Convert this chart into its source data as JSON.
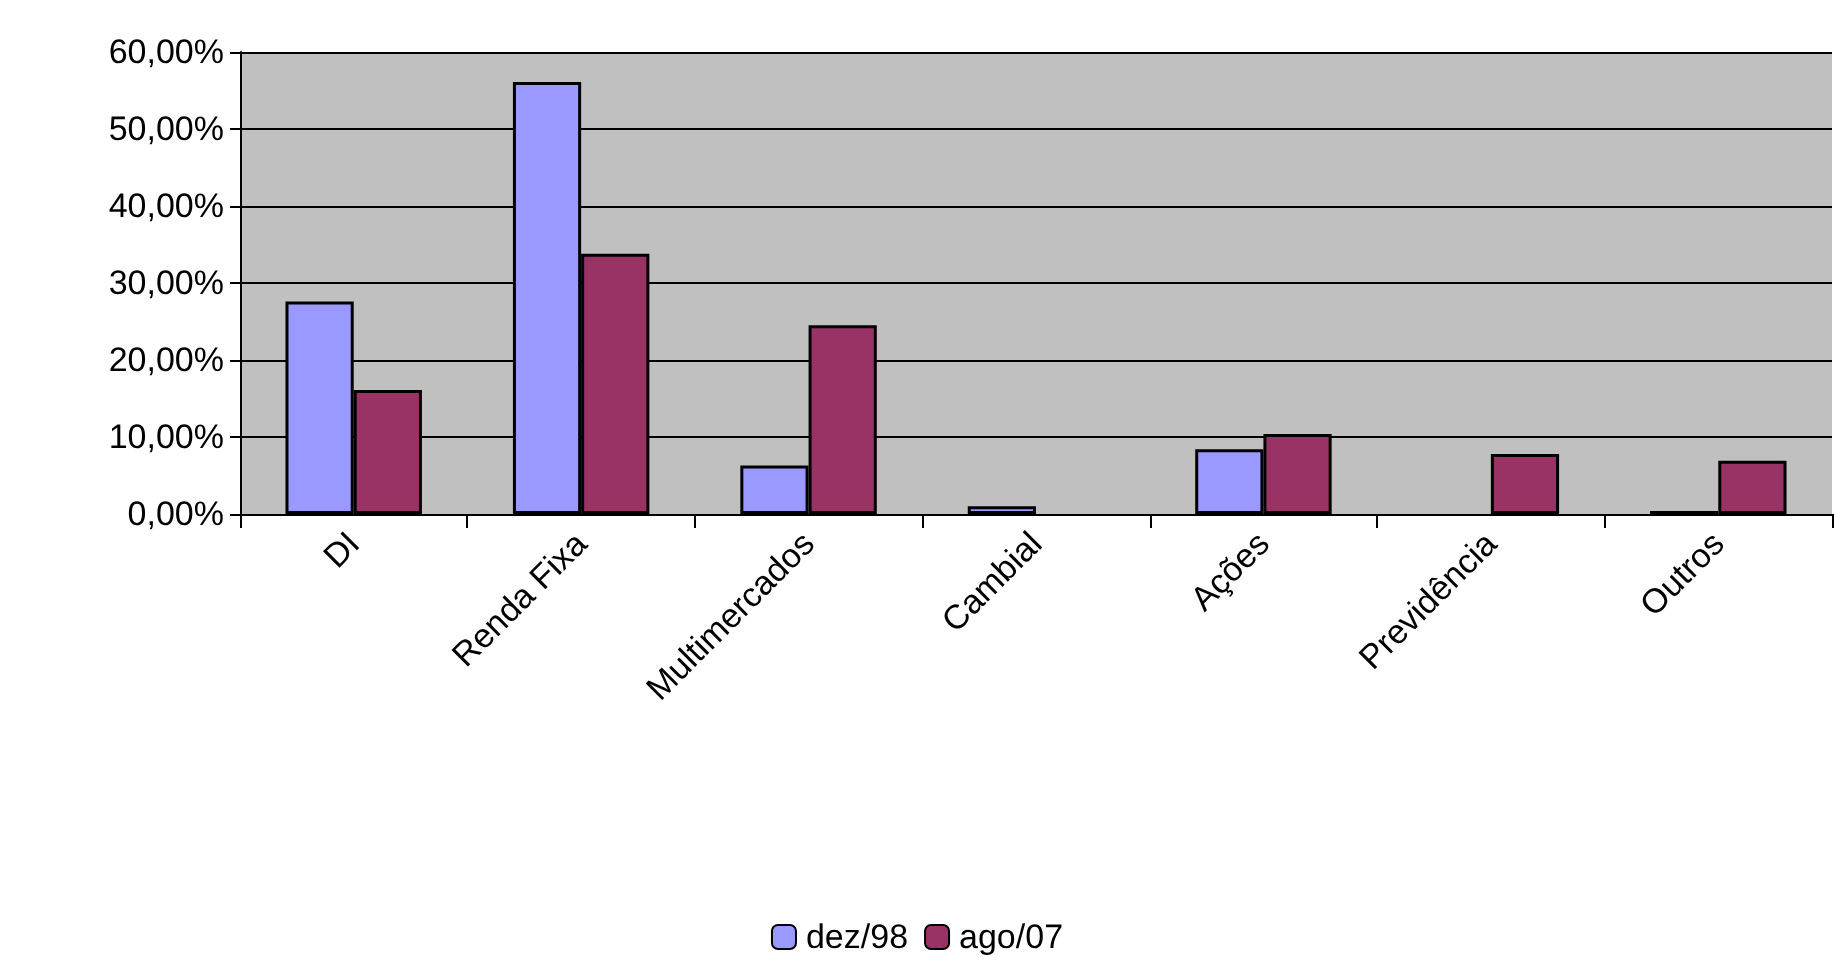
{
  "chart_data": {
    "type": "bar",
    "categories": [
      "DI",
      "Renda Fixa",
      "Multimercados",
      "Cambial",
      "Ações",
      "Previdência",
      "Outros"
    ],
    "series": [
      {
        "name": "dez/98",
        "color": "#9999ff",
        "values": [
          27.6,
          56.1,
          6.3,
          1.0,
          8.4,
          null,
          0.4
        ]
      },
      {
        "name": "ago/07",
        "color": "#993366",
        "values": [
          16.1,
          33.8,
          24.5,
          null,
          10.4,
          7.8,
          6.9
        ]
      }
    ],
    "ylim": [
      0,
      60
    ],
    "yticks": [
      {
        "value": 0,
        "label": "0,00%"
      },
      {
        "value": 10,
        "label": "10,00%"
      },
      {
        "value": 20,
        "label": "20,00%"
      },
      {
        "value": 30,
        "label": "30,00%"
      },
      {
        "value": 40,
        "label": "40,00%"
      },
      {
        "value": 50,
        "label": "50,00%"
      },
      {
        "value": 60,
        "label": "60,00%"
      }
    ],
    "grid": "y",
    "legend": "bottom"
  }
}
